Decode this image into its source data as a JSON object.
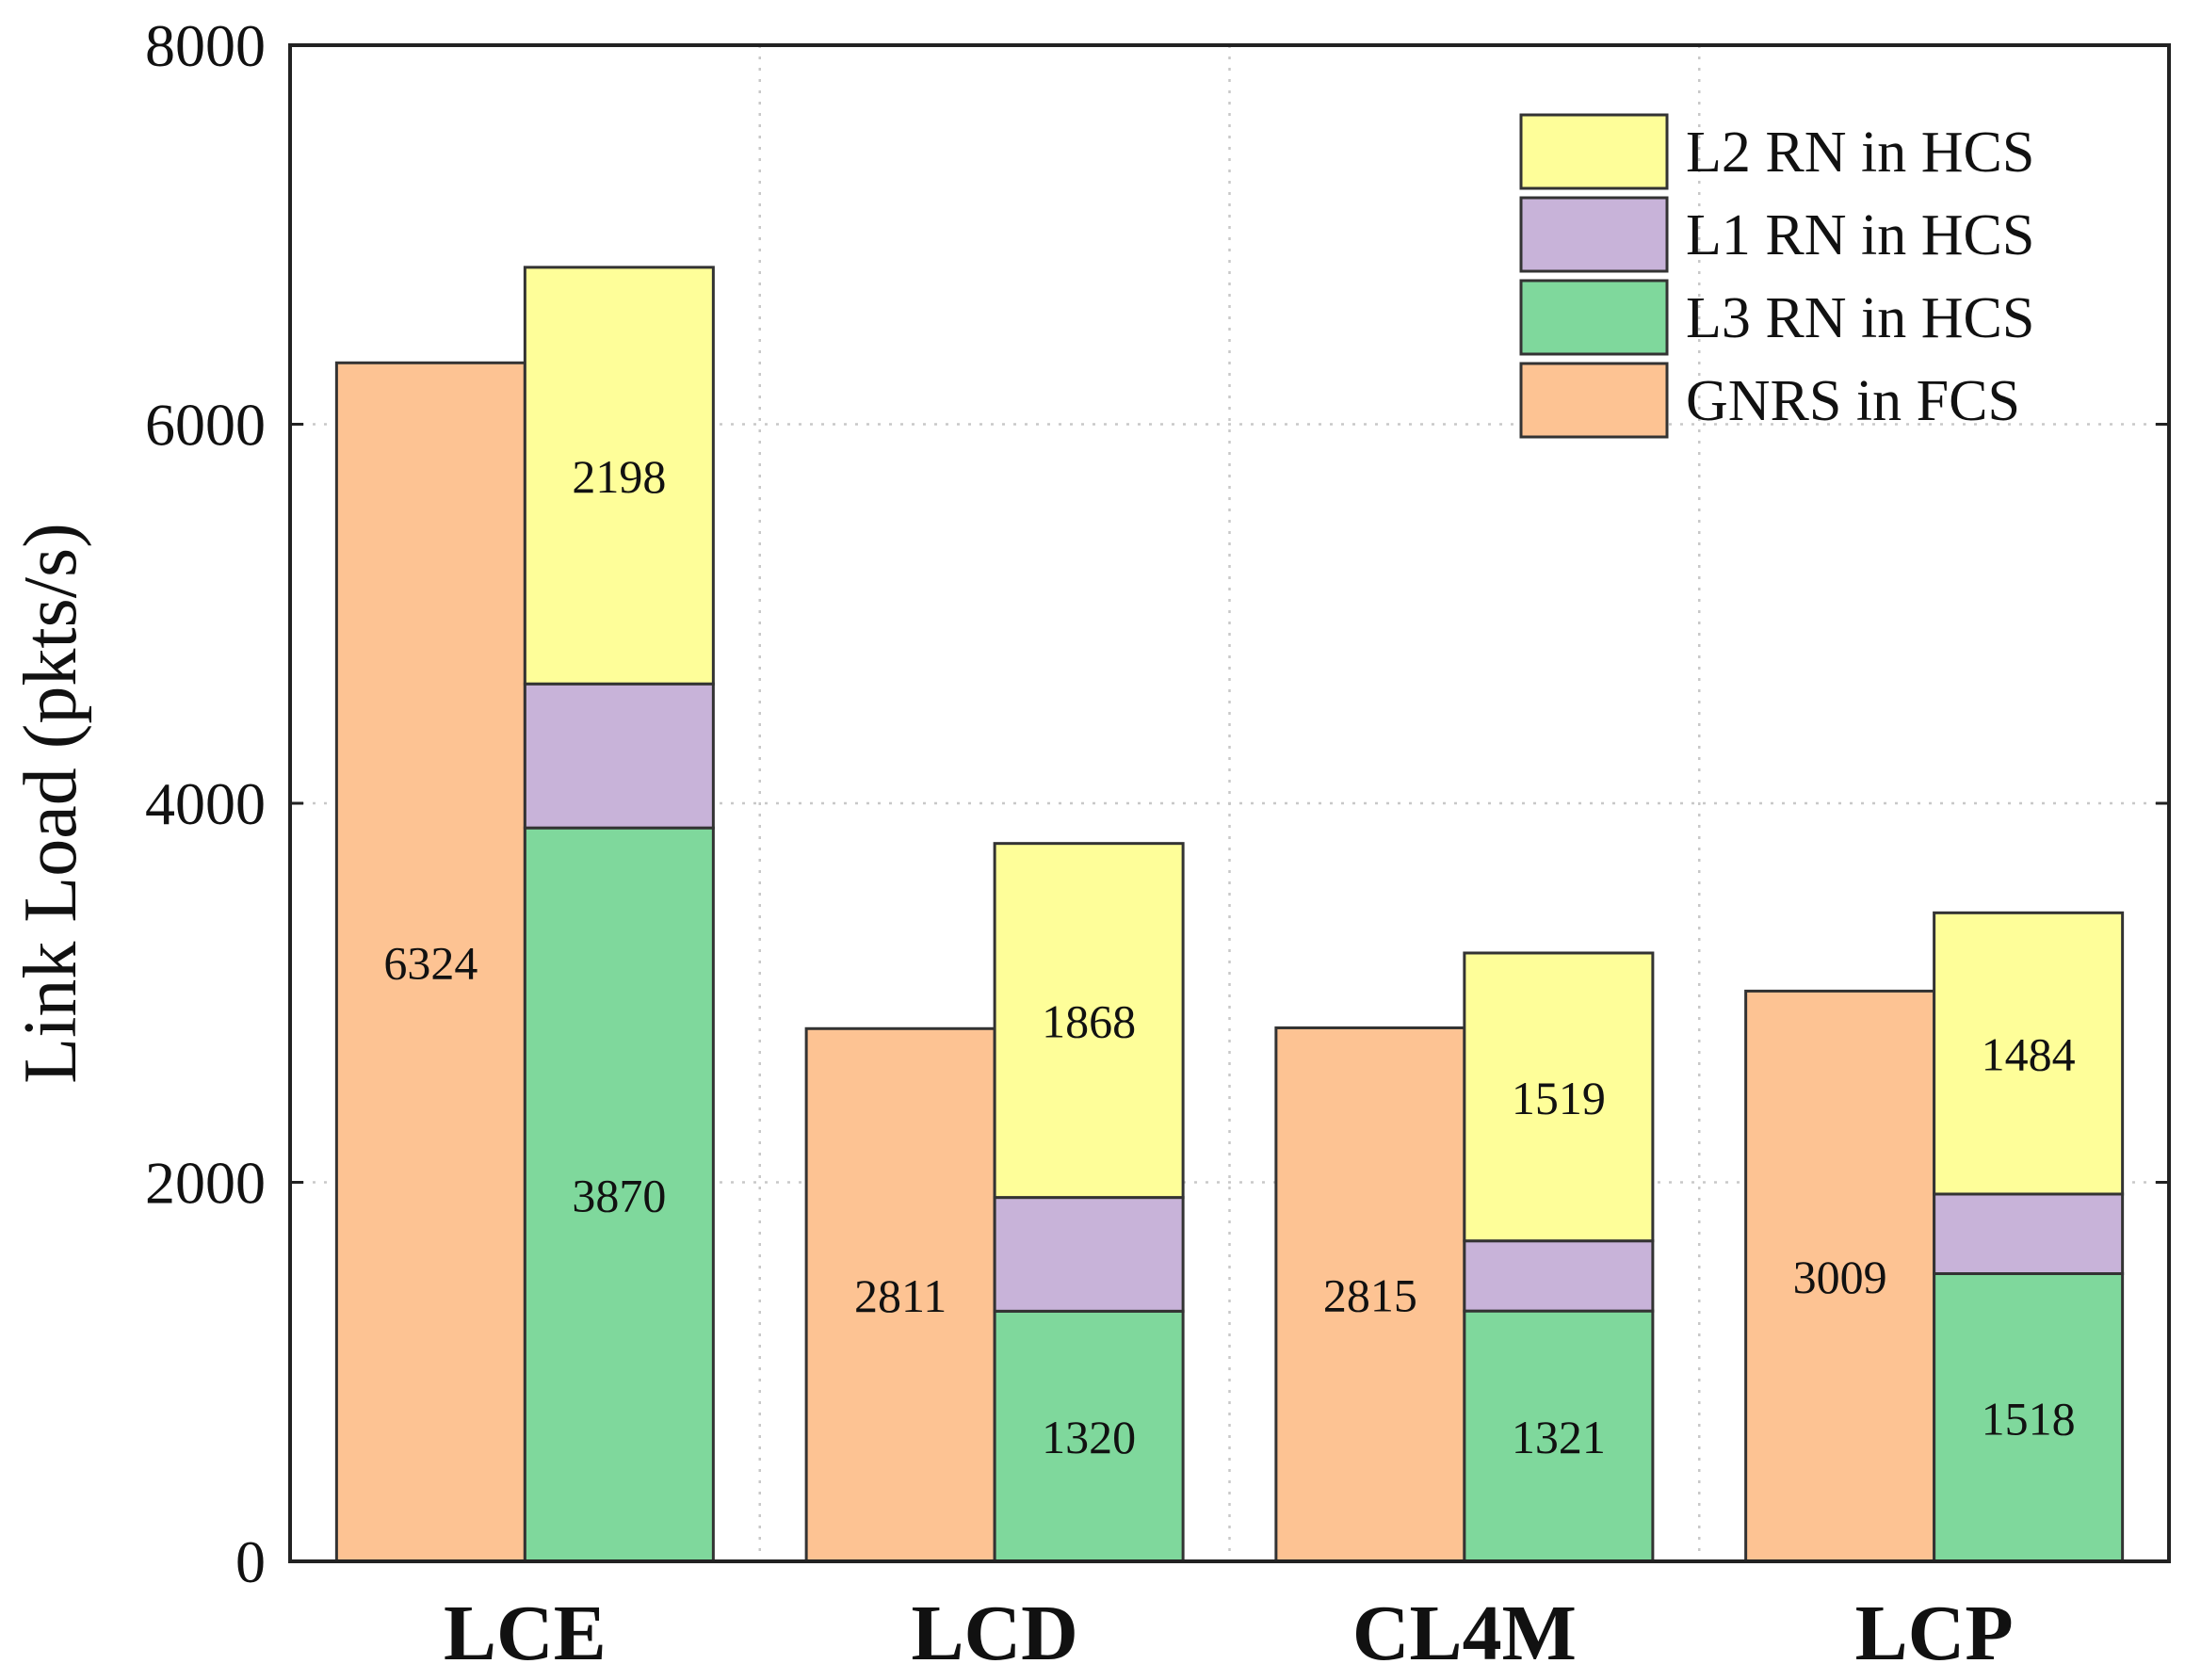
{
  "chart_data": {
    "type": "bar",
    "stacked_groups": true,
    "ylabel": "Link Load (pkts/s)",
    "xlabel": "",
    "title": "",
    "ylim": [
      0,
      8000
    ],
    "yticks": [
      0,
      2000,
      4000,
      6000,
      8000
    ],
    "categories": [
      "LCE",
      "LCD",
      "CL4M",
      "LCP"
    ],
    "series": [
      {
        "name": "GNRS in FCS",
        "stack": "FCS",
        "color": "#FDC393",
        "values": [
          6324,
          2811,
          2815,
          3009
        ],
        "labels": [
          "6324",
          "2811",
          "2815",
          "3009"
        ]
      },
      {
        "name": "L3 RN in HCS",
        "stack": "HCS",
        "color": "#7FD89C",
        "values": [
          3870,
          1320,
          1321,
          1518
        ],
        "labels": [
          "3870",
          "1320",
          "1321",
          "1518"
        ]
      },
      {
        "name": "L1 RN in HCS",
        "stack": "HCS",
        "color": "#C8B3D9",
        "values": [
          760,
          600,
          370,
          420
        ],
        "labels": [
          "",
          "",
          "",
          ""
        ]
      },
      {
        "name": "L2 RN in HCS",
        "stack": "HCS",
        "color": "#FEFE99",
        "values": [
          2198,
          1868,
          1519,
          1484
        ],
        "labels": [
          "2198",
          "1868",
          "1519",
          "1484"
        ]
      }
    ],
    "legend": {
      "position": "top-right",
      "order": [
        "L2 RN in HCS",
        "L1 RN in HCS",
        "L3 RN in HCS",
        "GNRS in FCS"
      ]
    },
    "grid": true
  }
}
